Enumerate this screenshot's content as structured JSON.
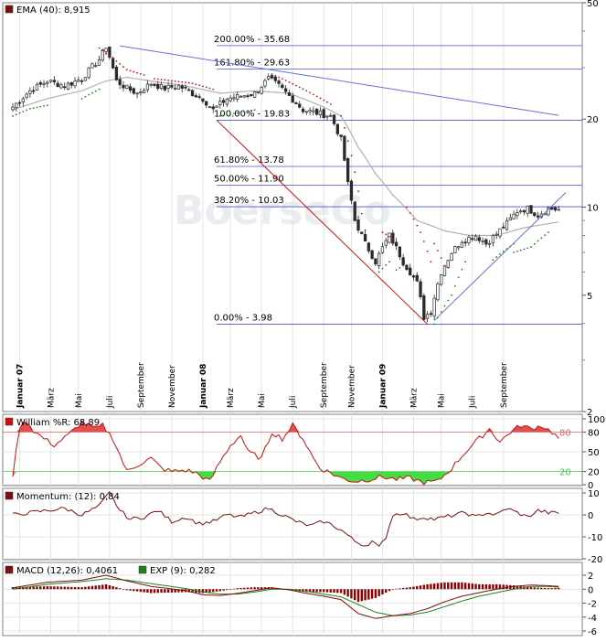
{
  "watermark": "BoerseGo",
  "colors": {
    "up": "#2a2a2a",
    "down": "#2a2a2a",
    "ema": "#b0b0b0",
    "fib": "#4a55cc",
    "trend_red": "#d01010",
    "trend_blue": "#6470d8",
    "williams": "#cc1010",
    "williams_fill_hi": "#e05050",
    "williams_fill_lo": "#44dd44",
    "ref80": "#e06060",
    "ref20": "#4ac44a",
    "momentum": "#7a1010",
    "macd_line": "#7a1010",
    "macd_signal": "#208020",
    "macd_hist": "#8b0000"
  },
  "chart_data": [
    {
      "type": "candlestick",
      "legend": "EMA (40): 8,915",
      "scale": "log",
      "ylim": [
        2,
        50
      ],
      "y_ticks": [
        "50",
        "20",
        "10",
        "5",
        "2"
      ],
      "x_ticks": [
        "Januar 07",
        "März",
        "Mai",
        "Juli",
        "September",
        "November",
        "Januar 08",
        "März",
        "Mai",
        "Juli",
        "September",
        "November",
        "Januar 09",
        "März",
        "Mai",
        "Juli",
        "September"
      ],
      "fib_levels": [
        {
          "label": "200.00% - 35.68",
          "value": 35.68
        },
        {
          "label": "161.80% - 29.63",
          "value": 29.63
        },
        {
          "label": "100.00% - 19.83",
          "value": 19.83
        },
        {
          "label": "61.80% - 13.78",
          "value": 13.78
        },
        {
          "label": "50.00% - 11.90",
          "value": 11.9
        },
        {
          "label": "38.20% - 10.03",
          "value": 10.03
        },
        {
          "label": "0.00% - 3.98",
          "value": 3.98
        }
      ],
      "price_keypoints": [
        [
          0,
          22
        ],
        [
          5,
          25
        ],
        [
          10,
          27
        ],
        [
          15,
          26
        ],
        [
          20,
          27.5
        ],
        [
          25,
          32
        ],
        [
          27,
          35.5
        ],
        [
          30,
          27
        ],
        [
          33,
          25.5
        ],
        [
          36,
          24.5
        ],
        [
          40,
          26.5
        ],
        [
          44,
          25.5
        ],
        [
          48,
          26
        ],
        [
          52,
          24.5
        ],
        [
          55,
          23.5
        ],
        [
          58,
          21.5
        ],
        [
          62,
          23.5
        ],
        [
          66,
          24
        ],
        [
          70,
          24.5
        ],
        [
          74,
          27.5
        ],
        [
          77,
          26
        ],
        [
          80,
          24
        ],
        [
          84,
          21.5
        ],
        [
          88,
          21
        ],
        [
          92,
          20.5
        ],
        [
          95,
          17
        ],
        [
          97,
          12
        ],
        [
          99,
          9
        ],
        [
          102,
          7.5
        ],
        [
          105,
          6.5
        ],
        [
          109,
          8
        ],
        [
          113,
          6.5
        ],
        [
          117,
          5.5
        ],
        [
          119,
          4.2
        ],
        [
          121,
          4.4
        ],
        [
          124,
          6
        ],
        [
          127,
          7
        ],
        [
          130,
          7.7
        ],
        [
          134,
          8
        ],
        [
          137,
          7.5
        ],
        [
          140,
          8.1
        ],
        [
          143,
          8.8
        ],
        [
          146,
          9.7
        ],
        [
          149,
          9.9
        ],
        [
          152,
          9.4
        ],
        [
          155,
          9.9
        ],
        [
          158,
          9.8
        ]
      ],
      "ema_keypoints": [
        [
          0,
          21.5
        ],
        [
          10,
          23.5
        ],
        [
          20,
          25
        ],
        [
          27,
          27
        ],
        [
          33,
          27.8
        ],
        [
          40,
          27
        ],
        [
          50,
          26
        ],
        [
          60,
          24.5
        ],
        [
          70,
          25
        ],
        [
          80,
          24.5
        ],
        [
          90,
          22
        ],
        [
          95,
          20.5
        ],
        [
          100,
          16
        ],
        [
          105,
          13
        ],
        [
          110,
          11
        ],
        [
          117,
          9
        ],
        [
          125,
          8.3
        ],
        [
          132,
          8
        ],
        [
          140,
          8
        ],
        [
          148,
          8.5
        ],
        [
          158,
          8.9
        ]
      ],
      "psar_red": [
        [
          [
            25,
            35
          ],
          [
            33,
            29.5
          ],
          [
            38,
            28.3
          ]
        ],
        [
          [
            41,
            27.5
          ],
          [
            52,
            26.5
          ],
          [
            58,
            25.3
          ]
        ],
        [
          [
            75,
            28.5
          ],
          [
            85,
            25
          ],
          [
            92,
            22.5
          ]
        ],
        [
          [
            95,
            20.5
          ],
          [
            98,
            15
          ],
          [
            101,
            9.5
          ],
          [
            103,
            7.2
          ]
        ],
        [
          [
            107,
            8.2
          ],
          [
            110,
            7.8
          ]
        ],
        [
          [
            114,
            10
          ],
          [
            118,
            8.2
          ],
          [
            121,
            6.5
          ]
        ],
        [
          [
            122,
            7.5
          ],
          [
            125,
            6.3
          ]
        ]
      ],
      "psar_green": [
        [
          [
            0,
            20.5
          ],
          [
            5,
            21.7
          ],
          [
            10,
            22.3
          ]
        ],
        [
          [
            20,
            23.5
          ],
          [
            25,
            25.3
          ]
        ],
        [
          [
            60,
            20.5
          ],
          [
            70,
            21.5
          ]
        ],
        [
          [
            106,
            6
          ],
          [
            109,
            6.5
          ]
        ],
        [
          [
            111,
            6.1
          ],
          [
            113,
            6.3
          ]
        ],
        [
          [
            122,
            3.98
          ],
          [
            127,
            5
          ],
          [
            131,
            6.5
          ]
        ],
        [
          [
            139,
            6.6
          ],
          [
            145,
            7.5
          ]
        ],
        [
          [
            145,
            7
          ],
          [
            150,
            7.3
          ],
          [
            155,
            8.2
          ]
        ]
      ],
      "trend_red": [
        [
          59,
          19.83
        ],
        [
          120,
          3.98
        ]
      ],
      "trend_blue_upper": [
        [
          31,
          35.6
        ],
        [
          158,
          20.6
        ]
      ],
      "trend_blue_lower": [
        [
          122,
          4.1
        ],
        [
          160,
          11.2
        ]
      ]
    },
    {
      "type": "line",
      "legend": "William %R: 68,89",
      "ylim": [
        0,
        100
      ],
      "y_ticks": [
        "100",
        "80",
        "50",
        "20",
        "0"
      ],
      "ref_lines": [
        {
          "value": 80,
          "label": "80"
        },
        {
          "value": 20,
          "label": "20"
        }
      ],
      "keypoints": [
        [
          0,
          15
        ],
        [
          2,
          88
        ],
        [
          4,
          97
        ],
        [
          6,
          82
        ],
        [
          9,
          70
        ],
        [
          12,
          60
        ],
        [
          16,
          75
        ],
        [
          20,
          95
        ],
        [
          24,
          85
        ],
        [
          26,
          90
        ],
        [
          29,
          70
        ],
        [
          33,
          20
        ],
        [
          36,
          30
        ],
        [
          40,
          40
        ],
        [
          43,
          25
        ],
        [
          46,
          20
        ],
        [
          50,
          22
        ],
        [
          53,
          18
        ],
        [
          57,
          5
        ],
        [
          60,
          35
        ],
        [
          63,
          60
        ],
        [
          66,
          75
        ],
        [
          68,
          50
        ],
        [
          72,
          40
        ],
        [
          75,
          80
        ],
        [
          78,
          70
        ],
        [
          81,
          90
        ],
        [
          84,
          70
        ],
        [
          87,
          40
        ],
        [
          89,
          25
        ],
        [
          92,
          18
        ],
        [
          95,
          10
        ],
        [
          99,
          5
        ],
        [
          103,
          8
        ],
        [
          107,
          12
        ],
        [
          111,
          8
        ],
        [
          115,
          10
        ],
        [
          119,
          3
        ],
        [
          123,
          5
        ],
        [
          127,
          25
        ],
        [
          131,
          50
        ],
        [
          135,
          70
        ],
        [
          138,
          85
        ],
        [
          141,
          65
        ],
        [
          144,
          80
        ],
        [
          147,
          90
        ],
        [
          150,
          85
        ],
        [
          153,
          90
        ],
        [
          156,
          80
        ],
        [
          158,
          70
        ]
      ]
    },
    {
      "type": "line",
      "legend": "Momentum: (12): 0,84",
      "ylim": [
        -20,
        10
      ],
      "y_ticks": [
        "10",
        "0",
        "-10",
        "-20"
      ],
      "keypoints": [
        [
          0,
          0
        ],
        [
          5,
          1
        ],
        [
          10,
          2
        ],
        [
          15,
          3
        ],
        [
          20,
          0
        ],
        [
          25,
          4
        ],
        [
          28,
          10
        ],
        [
          31,
          2
        ],
        [
          34,
          -2
        ],
        [
          38,
          -1
        ],
        [
          42,
          2
        ],
        [
          46,
          -3
        ],
        [
          50,
          -1
        ],
        [
          54,
          -4
        ],
        [
          58,
          -3
        ],
        [
          62,
          0
        ],
        [
          66,
          -1
        ],
        [
          70,
          1
        ],
        [
          74,
          3
        ],
        [
          78,
          0
        ],
        [
          82,
          -3
        ],
        [
          86,
          -5
        ],
        [
          90,
          -3
        ],
        [
          93,
          -5
        ],
        [
          96,
          -8
        ],
        [
          99,
          -12
        ],
        [
          102,
          -14
        ],
        [
          104,
          -12
        ],
        [
          106,
          -15
        ],
        [
          108,
          -10
        ],
        [
          110,
          0
        ],
        [
          113,
          1
        ],
        [
          116,
          -2
        ],
        [
          119,
          -1
        ],
        [
          122,
          -2
        ],
        [
          125,
          -1
        ],
        [
          128,
          0
        ],
        [
          131,
          1
        ],
        [
          134,
          -1
        ],
        [
          137,
          1
        ],
        [
          140,
          0
        ],
        [
          143,
          3
        ],
        [
          146,
          1
        ],
        [
          149,
          -1
        ],
        [
          152,
          2
        ],
        [
          155,
          1
        ],
        [
          158,
          0.84
        ]
      ]
    },
    {
      "type": "line+bar",
      "legend_macd": "MACD (12,26): 0,4061",
      "legend_signal": "EXP (9): 0,282",
      "ylim": [
        -6,
        2
      ],
      "y_ticks": [
        "2",
        "0",
        "-2",
        "-4",
        "-6"
      ],
      "macd_keypoints": [
        [
          0,
          0.2
        ],
        [
          10,
          1
        ],
        [
          20,
          1.3
        ],
        [
          27,
          2
        ],
        [
          33,
          1.2
        ],
        [
          40,
          0.4
        ],
        [
          50,
          -0.2
        ],
        [
          55,
          -0.8
        ],
        [
          60,
          -0.9
        ],
        [
          65,
          -0.6
        ],
        [
          70,
          -0.2
        ],
        [
          75,
          0.2
        ],
        [
          80,
          -0.1
        ],
        [
          85,
          -0.6
        ],
        [
          90,
          -1
        ],
        [
          95,
          -1.5
        ],
        [
          100,
          -3.5
        ],
        [
          105,
          -4.2
        ],
        [
          110,
          -3.8
        ],
        [
          115,
          -3.5
        ],
        [
          120,
          -2.8
        ],
        [
          125,
          -1.8
        ],
        [
          130,
          -1
        ],
        [
          135,
          -0.5
        ],
        [
          140,
          0
        ],
        [
          145,
          0.4
        ],
        [
          150,
          0.6
        ],
        [
          155,
          0.5
        ],
        [
          158,
          0.4061
        ]
      ],
      "signal_keypoints": [
        [
          0,
          0
        ],
        [
          10,
          0.7
        ],
        [
          20,
          1.1
        ],
        [
          27,
          1.5
        ],
        [
          33,
          1.3
        ],
        [
          40,
          0.8
        ],
        [
          50,
          0.1
        ],
        [
          55,
          -0.4
        ],
        [
          60,
          -0.7
        ],
        [
          65,
          -0.7
        ],
        [
          70,
          -0.4
        ],
        [
          75,
          0
        ],
        [
          80,
          0
        ],
        [
          85,
          -0.3
        ],
        [
          90,
          -0.7
        ],
        [
          95,
          -1.1
        ],
        [
          100,
          -2.2
        ],
        [
          105,
          -3.3
        ],
        [
          110,
          -3.8
        ],
        [
          115,
          -3.7
        ],
        [
          120,
          -3.3
        ],
        [
          125,
          -2.5
        ],
        [
          130,
          -1.7
        ],
        [
          135,
          -1
        ],
        [
          140,
          -0.5
        ],
        [
          145,
          0
        ],
        [
          150,
          0.4
        ],
        [
          155,
          0.4
        ],
        [
          158,
          0.282
        ]
      ]
    }
  ]
}
